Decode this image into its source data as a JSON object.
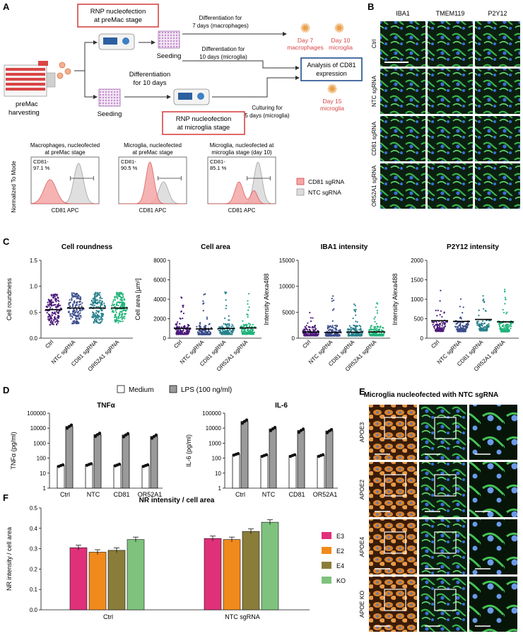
{
  "panel_letters": [
    "A",
    "B",
    "C",
    "D",
    "E",
    "F"
  ],
  "panelA": {
    "box1": [
      "RNP nucleofection",
      "at preMac stage"
    ],
    "box2": [
      "RNP nucleofection",
      "at microglia stage"
    ],
    "analysis": [
      "Analysis of CD81",
      "expression"
    ],
    "preMac": [
      "preMac",
      "harvesting"
    ],
    "seeding1": "Seeding",
    "seeding2": "Seeding",
    "diff7": [
      "Differentiation for",
      "7 days (macrophages)"
    ],
    "diff10a": [
      "Differentiation for",
      "10 days (microglia)"
    ],
    "diff10b": [
      "Differentiation",
      "for 10 days"
    ],
    "culturing": [
      "Culturing for",
      "5 days (microglia)"
    ],
    "day7": [
      "Day 7",
      "macrophages"
    ],
    "day10": [
      "Day 10",
      "microglia"
    ],
    "day15": [
      "Day 15",
      "microglia"
    ],
    "flow_titles": [
      [
        "Macrophages, nucleofected",
        "at preMac stage"
      ],
      [
        "Microglia, nucleofected",
        "at preMac stage"
      ],
      [
        "Microglia, nucleofected at",
        "microglia stage (day 10)"
      ]
    ],
    "flow_pct": [
      [
        "CD81-",
        "97.1 %"
      ],
      [
        "CD81-",
        "90.5 %"
      ],
      [
        "CD81-",
        "85.1 %"
      ]
    ],
    "flow_xlabel": "CD81 APC",
    "flow_ylabel": "Normalized To Mode",
    "legend": [
      "CD81 sgRNA",
      "NTC sgRNA"
    ],
    "colors": {
      "red": "#d94545",
      "redfill": "#f4a6a6",
      "grey": "#bdbdbd",
      "blue": "#1f4e8c"
    }
  },
  "panelB": {
    "columns": [
      "IBA1",
      "TMEM119",
      "P2Y12"
    ],
    "rows": [
      "Ctrl",
      "NTC sgRNA",
      "CD81 sgRNA",
      "OR52A1 sgRNA"
    ]
  },
  "panelC": {
    "groups": [
      "Ctrl",
      "NTC sgRNA",
      "CD81 sgRNA",
      "OR52A1 sgRNA"
    ],
    "colors": [
      "#4b1a7a",
      "#3b4c8c",
      "#27818c",
      "#1fb37a"
    ],
    "charts": [
      {
        "title": "Cell roundness",
        "ylabel": "Cell roundness",
        "ylim": [
          0,
          1.5
        ],
        "yticks": [
          "0.0",
          "0.5",
          "1.0",
          "1.5"
        ],
        "median": [
          0.55,
          0.58,
          0.58,
          0.58
        ]
      },
      {
        "title": "Cell area",
        "ylabel": "Cell area [µm²]",
        "ylim": [
          0,
          8000
        ],
        "yticks": [
          "0",
          "2000",
          "4000",
          "6000",
          "8000"
        ],
        "median": [
          1000,
          950,
          1000,
          1050
        ]
      },
      {
        "title": "IBA1 intensity",
        "ylabel": "Intensity Alexa488",
        "ylim": [
          0,
          15000
        ],
        "yticks": [
          "0",
          "5000",
          "10000",
          "15000"
        ],
        "median": [
          1200,
          1100,
          1150,
          1200
        ]
      },
      {
        "title": "P2Y12 intensity",
        "ylabel": "Intensity Alexa488",
        "ylim": [
          0,
          2000
        ],
        "yticks": [
          "0",
          "500",
          "1000",
          "1500",
          "2000"
        ],
        "median": [
          450,
          430,
          480,
          420
        ]
      }
    ]
  },
  "panelD": {
    "legend": [
      "Medium",
      "LPS (100 ng/ml)"
    ],
    "categories": [
      "Ctrl",
      "NTC",
      "CD81",
      "OR52A1"
    ],
    "yticks": [
      "1",
      "10",
      "100",
      "1000",
      "10000",
      "100000"
    ],
    "charts": [
      {
        "title": "TNFα",
        "ylabel": "TNFα (pg/ml)",
        "medium": [
          32,
          38,
          35,
          32
        ],
        "lps": [
          13000,
          3700,
          3500,
          2800
        ]
      },
      {
        "title": "IL-6",
        "ylabel": "IL-6 (pg/ml)",
        "medium": [
          180,
          150,
          150,
          150
        ],
        "lps": [
          28000,
          9000,
          7000,
          6500
        ]
      }
    ]
  },
  "panelE": {
    "title": "Microglia nucleofected with NTC sgRNA",
    "rows": [
      "APOE3",
      "APOE2",
      "APOE4",
      "APOE KO"
    ]
  },
  "chart_data": {
    "type": "bar",
    "title": "NR intensity / cell area",
    "ylabel": "NR intensity / cell area",
    "categories": [
      "Ctrl",
      "NTC sgRNA"
    ],
    "ylim": [
      0,
      0.5
    ],
    "yticks": [
      "0.0",
      "0.1",
      "0.2",
      "0.3",
      "0.4",
      "0.5"
    ],
    "series": [
      {
        "name": "E3",
        "color": "#e0307a",
        "values": [
          0.305,
          0.35
        ]
      },
      {
        "name": "E2",
        "color": "#f08a1c",
        "values": [
          0.283,
          0.345
        ]
      },
      {
        "name": "E4",
        "color": "#8a7d3a",
        "values": [
          0.292,
          0.385
        ]
      },
      {
        "name": "KO",
        "color": "#7ec27e",
        "values": [
          0.345,
          0.43
        ]
      }
    ]
  }
}
